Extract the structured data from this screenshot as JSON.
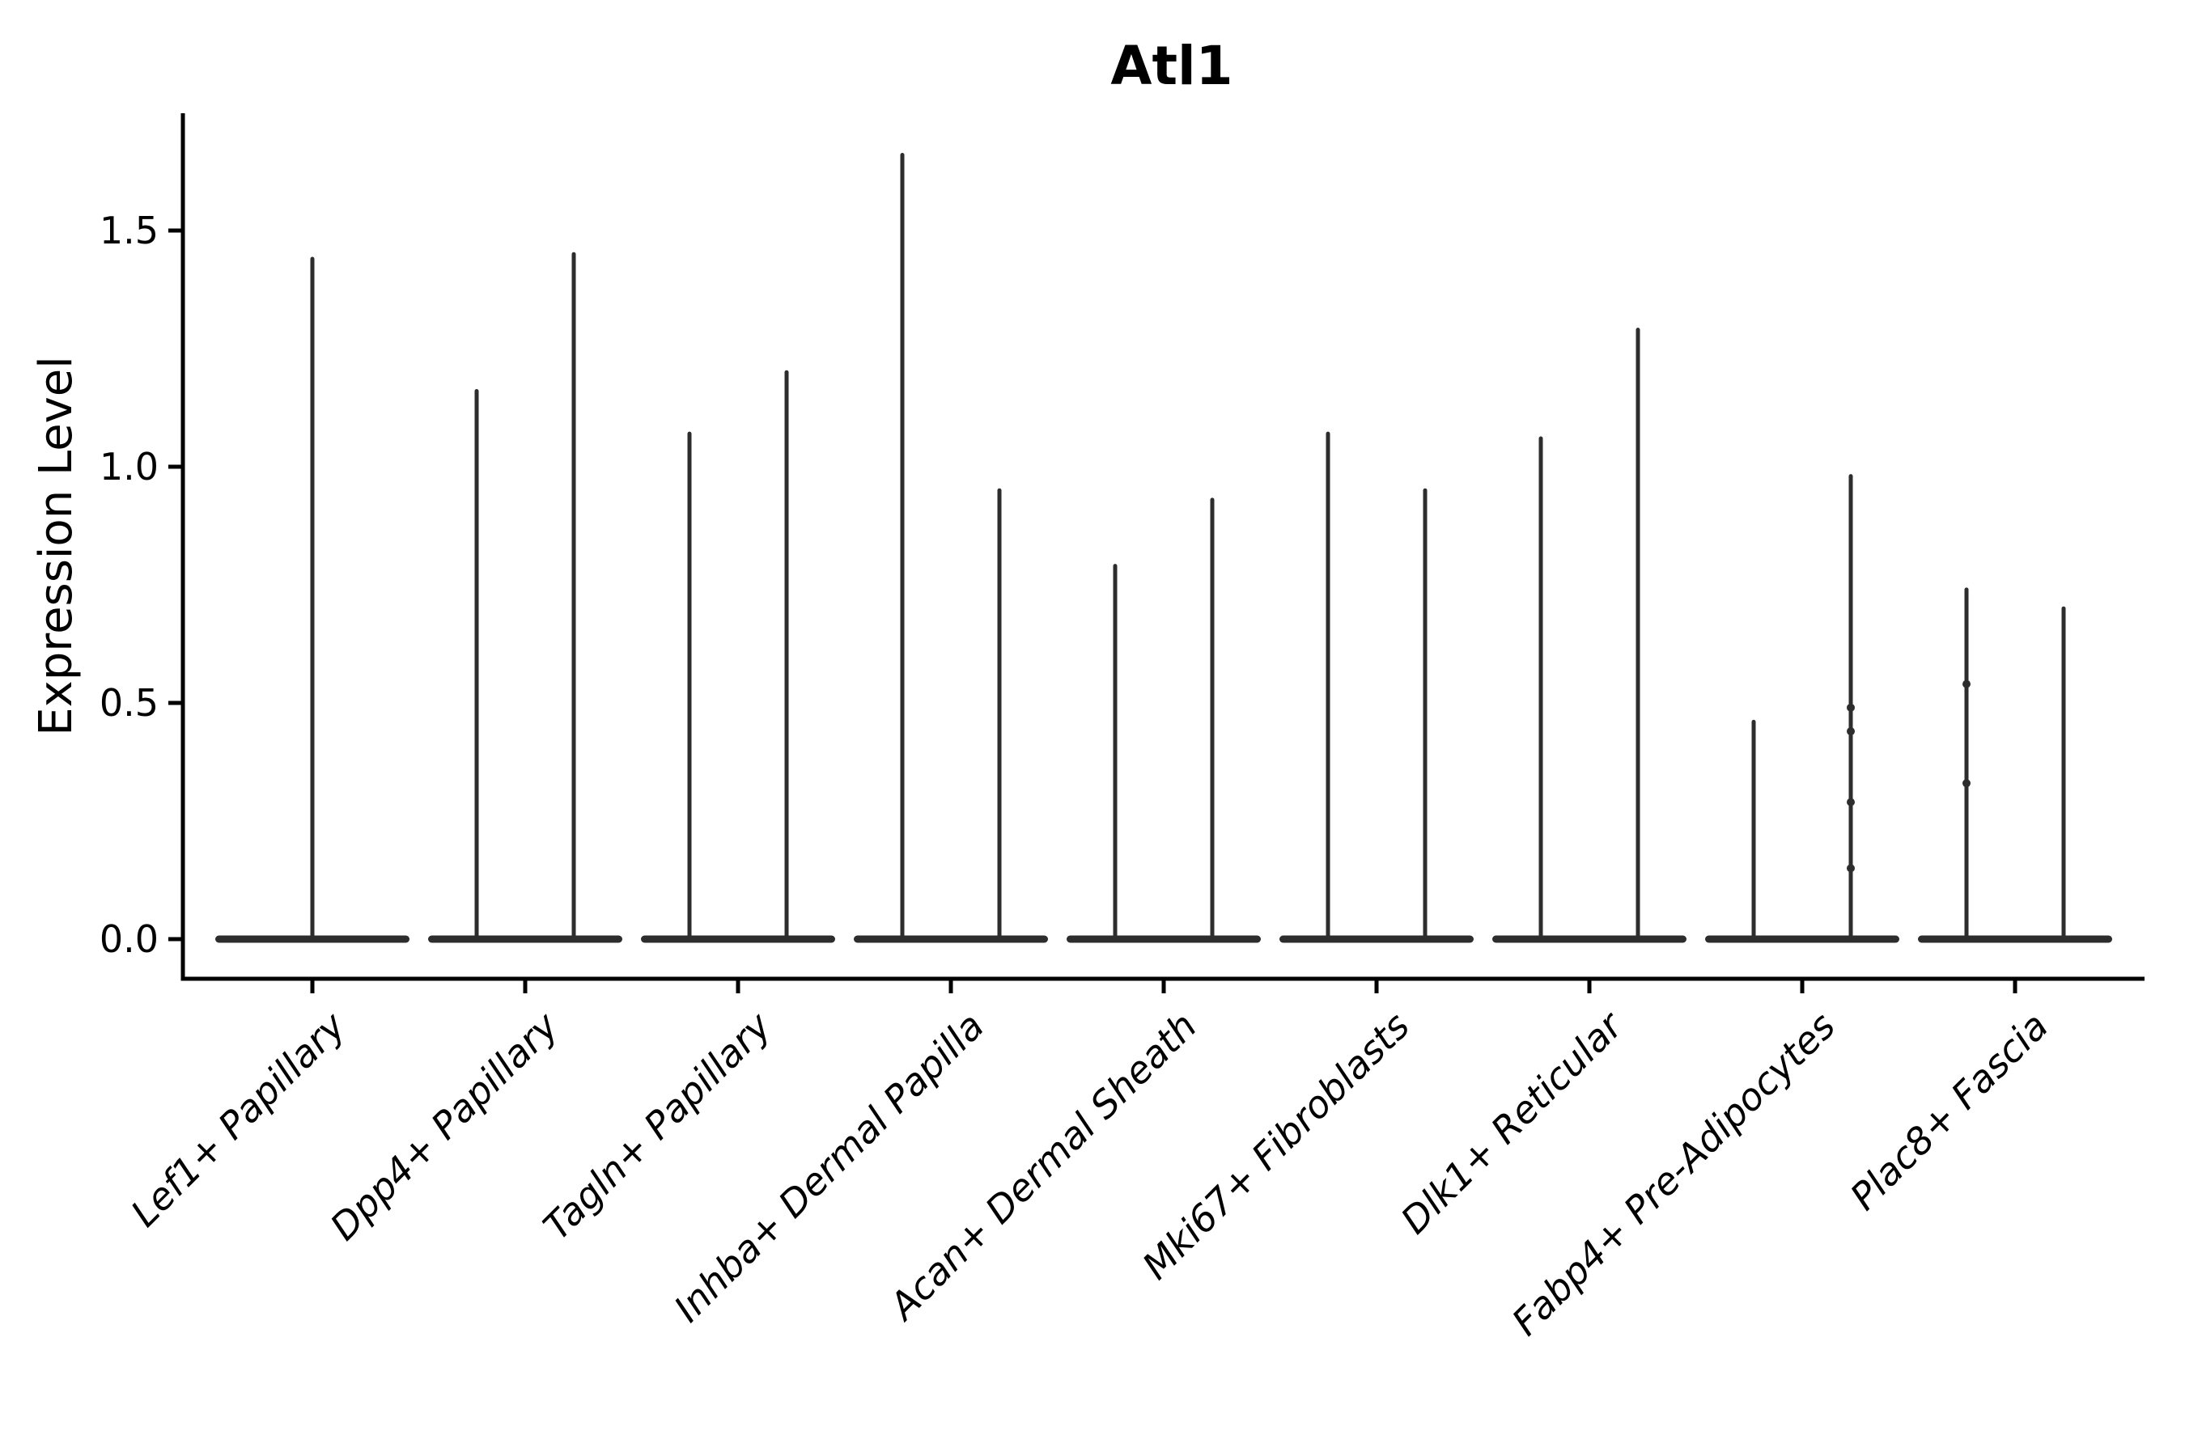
{
  "figure": {
    "background": "#ffffff",
    "title": "Atl1"
  },
  "chart_data": {
    "type": "violin",
    "title": "Atl1",
    "xlabel": "",
    "ylabel": "Expression Level",
    "grid": false,
    "legend_position": "none",
    "ink_color": "#2d2d2d",
    "axis_color": "#000000",
    "ylim": [
      -0.08,
      1.75
    ],
    "ytick_labels": [
      "0.0",
      "0.5",
      "1.0",
      "1.5"
    ],
    "ytick_values": [
      0.0,
      0.5,
      1.0,
      1.5
    ],
    "categories": [
      "Lef1+ Papillary",
      "Dpp4+ Papillary",
      "Tagln+ Papillary",
      "Inhba+ Dermal Papilla",
      "Acan+ Dermal Sheath",
      "Mki67+ Fibroblasts",
      "Dlk1+ Reticular",
      "Fabp4+ Pre-Adipocytes",
      "Plac8+ Fascia"
    ],
    "violin_description": "Each category shows a flat density base at expression 0 with one or two thin spikes rising to the maximum expression value; two spikes indicate two dodged violins per category.",
    "violins": [
      {
        "category": "Lef1+ Papillary",
        "group_max": [
          1.44
        ]
      },
      {
        "category": "Dpp4+ Papillary",
        "group_max": [
          1.16,
          1.45
        ]
      },
      {
        "category": "Tagln+ Papillary",
        "group_max": [
          1.07,
          1.2
        ]
      },
      {
        "category": "Inhba+ Dermal Papilla",
        "group_max": [
          1.66,
          0.95
        ]
      },
      {
        "category": "Acan+ Dermal Sheath",
        "group_max": [
          0.79,
          0.93
        ]
      },
      {
        "category": "Mki67+ Fibroblasts",
        "group_max": [
          1.07,
          0.95
        ]
      },
      {
        "category": "Dlk1+ Reticular",
        "group_max": [
          1.06,
          1.29
        ]
      },
      {
        "category": "Fabp4+ Pre-Adipocytes",
        "group_max": [
          0.46,
          0.98
        ]
      },
      {
        "category": "Plac8+ Fascia",
        "group_max": [
          0.74,
          0.7
        ]
      }
    ],
    "jitter_points": [
      {
        "category_index": 7,
        "group": 1,
        "values": [
          0.49,
          0.44,
          0.29,
          0.15
        ]
      },
      {
        "category_index": 8,
        "group": 0,
        "values": [
          0.54,
          0.33
        ]
      }
    ],
    "baseline_value": 0.0
  }
}
